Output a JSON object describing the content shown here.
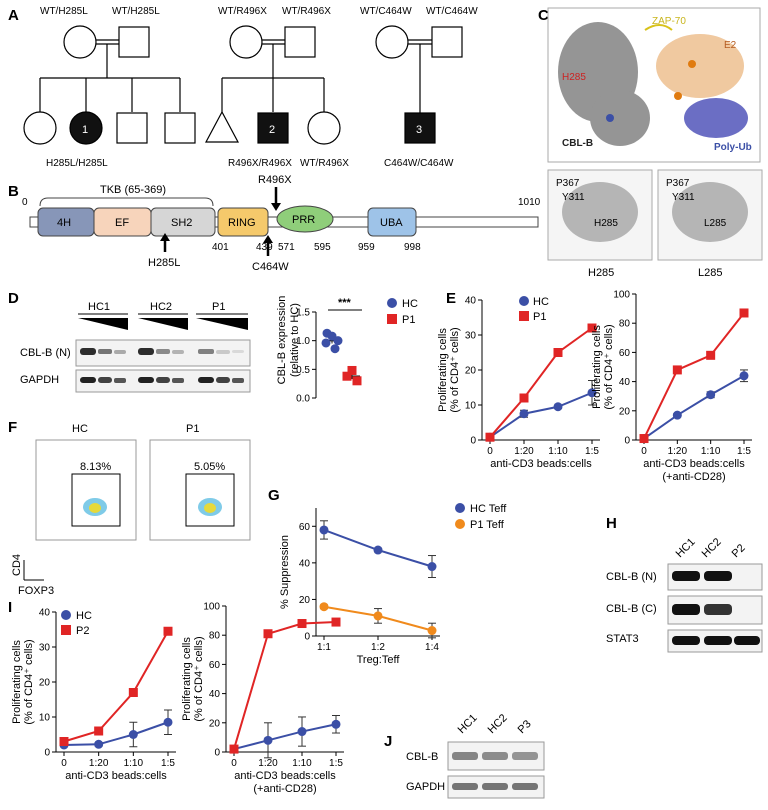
{
  "panels": {
    "A": {
      "label": "A",
      "fam1": {
        "father": "WT/H285L",
        "mother": "WT/H285L",
        "proband": "1",
        "genotype": "H285L/H285L"
      },
      "fam2": {
        "father": "WT/R496X",
        "mother": "WT/R496X",
        "proband": "2",
        "genotype": "R496X/R496X",
        "sib": "WT/R496X"
      },
      "fam3": {
        "father": "WT/C464W",
        "mother": "WT/C464W",
        "proband": "3",
        "genotype": "C464W/C464W"
      }
    },
    "B": {
      "label": "B",
      "tkb": "TKB (65-369)",
      "start": "0",
      "end": "1010",
      "domains": [
        "4H",
        "EF",
        "SH2",
        "RING",
        "PRR",
        "UBA"
      ],
      "nums": [
        "401",
        "439",
        "571",
        "595",
        "959",
        "998"
      ],
      "mut_top": "R496X",
      "mut_bottom1": "H285L",
      "mut_bottom2": "C464W"
    },
    "C": {
      "label": "C",
      "zap": "ZAP-70",
      "e2": "E2",
      "h285": "H285",
      "cblb": "CBL-B",
      "polyub": "Poly-Ub",
      "left": {
        "a": "P367",
        "b": "Y311",
        "c": "H285",
        "caption": "H285"
      },
      "right": {
        "a": "P367",
        "b": "Y311",
        "c": "L285",
        "caption": "L285"
      }
    },
    "D": {
      "label": "D",
      "lanes": [
        "HC1",
        "HC2",
        "P1"
      ],
      "rows": [
        "CBL-B (N)",
        "GAPDH"
      ],
      "ylabel1": "CBL-B expression",
      "ylabel2": "(relative to HC)",
      "sig": "***",
      "legend": [
        "HC",
        "P1"
      ],
      "yticks": [
        "0.0",
        "0.5",
        "1.0",
        "1.5"
      ]
    },
    "E": {
      "label": "E",
      "legend": [
        "HC",
        "P1"
      ]
    },
    "F": {
      "label": "F",
      "hc": "HC",
      "p1": "P1",
      "hc_pct": "8.13%",
      "p1_pct": "5.05%",
      "y": "CD4",
      "x": "FOXP3"
    },
    "G": {
      "label": "G",
      "legend": [
        "HC Teff",
        "P1 Teff"
      ]
    },
    "H": {
      "label": "H",
      "lanes": [
        "HC1",
        "HC2",
        "P2"
      ],
      "rows": [
        "CBL-B (N)",
        "CBL-B (C)",
        "STAT3"
      ]
    },
    "I": {
      "label": "I",
      "legend": [
        "HC",
        "P2"
      ]
    },
    "J": {
      "label": "J",
      "lanes": [
        "HC1",
        "HC2",
        "P3"
      ],
      "rows": [
        "CBL-B",
        "GAPDH"
      ]
    }
  },
  "colors": {
    "hc": "#3b4fa6",
    "patient": "#e02525",
    "treg": "#f08a1c"
  },
  "chart_data": [
    {
      "id": "D",
      "type": "scatter",
      "ylabel": "CBL-B expression (relative to HC)",
      "ylim": [
        0,
        1.5
      ],
      "yticks": [
        0.0,
        0.5,
        1.0,
        1.5
      ],
      "series": [
        {
          "name": "HC",
          "values": [
            1.13,
            1.08,
            1.0,
            0.96,
            0.86
          ],
          "mean": 1.0,
          "sem": 0.05
        },
        {
          "name": "P1",
          "values": [
            0.48,
            0.38,
            0.3
          ],
          "mean": 0.38,
          "sem": 0.05
        }
      ]
    },
    {
      "id": "E1",
      "type": "line",
      "categories": [
        "0",
        "1:20",
        "1:10",
        "1:5"
      ],
      "xlabel": "anti-CD3 beads:cells",
      "ylabel": "Proliferating cells (% of CD4+ cells)",
      "ylim": [
        0,
        40
      ],
      "yticks": [
        0,
        10,
        20,
        30,
        40
      ],
      "series": [
        {
          "name": "HC",
          "values": [
            0.8,
            7.5,
            9.5,
            13.5
          ],
          "err": [
            0,
            1,
            0.5,
            3.5
          ]
        },
        {
          "name": "P1",
          "values": [
            0.8,
            12,
            25,
            32
          ],
          "err": [
            0,
            0,
            0,
            0
          ]
        }
      ]
    },
    {
      "id": "E2",
      "type": "line",
      "categories": [
        "0",
        "1:20",
        "1:10",
        "1:5"
      ],
      "xlabel": "anti-CD3 beads:cells (+anti-CD28)",
      "ylabel": "Proliferating cells (% of CD4+ cells)",
      "ylim": [
        0,
        100
      ],
      "yticks": [
        0,
        20,
        40,
        60,
        80,
        100
      ],
      "series": [
        {
          "name": "HC",
          "values": [
            1,
            17,
            31,
            44
          ],
          "err": [
            0,
            1,
            2,
            4
          ]
        },
        {
          "name": "P1",
          "values": [
            1,
            48,
            58,
            87
          ],
          "err": [
            0,
            0,
            0,
            0
          ]
        }
      ]
    },
    {
      "id": "G",
      "type": "line",
      "categories": [
        "1:1",
        "1:2",
        "1:4"
      ],
      "xlabel": "Treg:Teff",
      "ylabel": "% Suppression",
      "ylim": [
        0,
        70
      ],
      "yticks": [
        0,
        20,
        40,
        60
      ],
      "series": [
        {
          "name": "HC Teff",
          "values": [
            58,
            47,
            38
          ],
          "err": [
            5,
            1,
            6
          ]
        },
        {
          "name": "P1 Teff",
          "values": [
            16,
            11,
            3
          ],
          "err": [
            1,
            4,
            4
          ]
        }
      ]
    },
    {
      "id": "I1",
      "type": "line",
      "categories": [
        "0",
        "1:20",
        "1:10",
        "1:5"
      ],
      "xlabel": "anti-CD3 beads:cells",
      "ylabel": "Proliferating cells (% of CD4+ cells)",
      "ylim": [
        0,
        40
      ],
      "yticks": [
        0,
        10,
        20,
        30,
        40
      ],
      "series": [
        {
          "name": "HC",
          "values": [
            2,
            2.2,
            5,
            8.5
          ],
          "err": [
            0.5,
            0.5,
            3.5,
            3.5
          ]
        },
        {
          "name": "P2",
          "values": [
            3,
            6,
            17,
            34.5
          ],
          "err": [
            0,
            0,
            0,
            0
          ]
        }
      ]
    },
    {
      "id": "I2",
      "type": "line",
      "categories": [
        "0",
        "1:20",
        "1:10",
        "1:5"
      ],
      "xlabel": "anti-CD3 beads:cells (+anti-CD28)",
      "ylabel": "Proliferating cells (% of CD4+ cells)",
      "ylim": [
        0,
        100
      ],
      "yticks": [
        0,
        20,
        40,
        60,
        80,
        100
      ],
      "series": [
        {
          "name": "HC",
          "values": [
            2,
            8,
            14,
            19
          ],
          "err": [
            0,
            12,
            10,
            6
          ]
        },
        {
          "name": "P2",
          "values": [
            2,
            81,
            88,
            89
          ],
          "err": [
            0,
            0,
            0,
            0
          ]
        }
      ]
    }
  ]
}
